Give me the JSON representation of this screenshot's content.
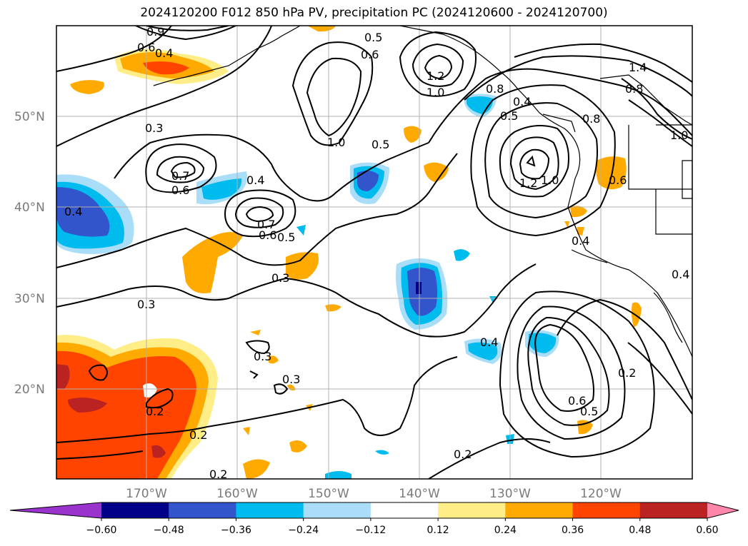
{
  "title": "2024120200 F012 850 hPa PV, precipitation PC (2024120600 - 2024120700)",
  "map": {
    "lat_labels": [
      "50°N",
      "40°N",
      "30°N",
      "20°N"
    ],
    "lon_labels": [
      "170°W",
      "160°W",
      "150°W",
      "140°W",
      "130°W",
      "120°W"
    ],
    "grid": true
  },
  "colorbar": {
    "orientation": "horizontal",
    "extend": "both",
    "colors": [
      "#9933cc",
      "#000088",
      "#3355cc",
      "#00bbee",
      "#aaddf8",
      "#ffffff",
      "#ffee88",
      "#ffaa00",
      "#ff4400",
      "#bb2222",
      "#ff88aa"
    ],
    "tick_labels": [
      "−0.60",
      "−0.48",
      "−0.36",
      "−0.24",
      "−0.12",
      "0.12",
      "0.24",
      "0.36",
      "0.48",
      "0.60"
    ]
  },
  "contour_labels": [
    "0.9",
    "0.6",
    "0.4",
    "0.5",
    "0.6",
    "1.2",
    "1.0",
    "0.8",
    "0.5",
    "0.4",
    "1.4",
    "0.8",
    "1.0",
    "0.8",
    "0.3",
    "1.0",
    "0.5",
    "0.7",
    "0.6",
    "0.4",
    "1.2",
    "1.0",
    "0.6",
    "0.4",
    "0.7",
    "0.6",
    "0.5",
    "0.4",
    "0.3",
    "0.3",
    "0.4",
    "0.3",
    "0.3",
    "0.4",
    "0.2",
    "0.6",
    "0.5",
    "0.2",
    "0.2",
    "0.2",
    "0.2"
  ]
}
